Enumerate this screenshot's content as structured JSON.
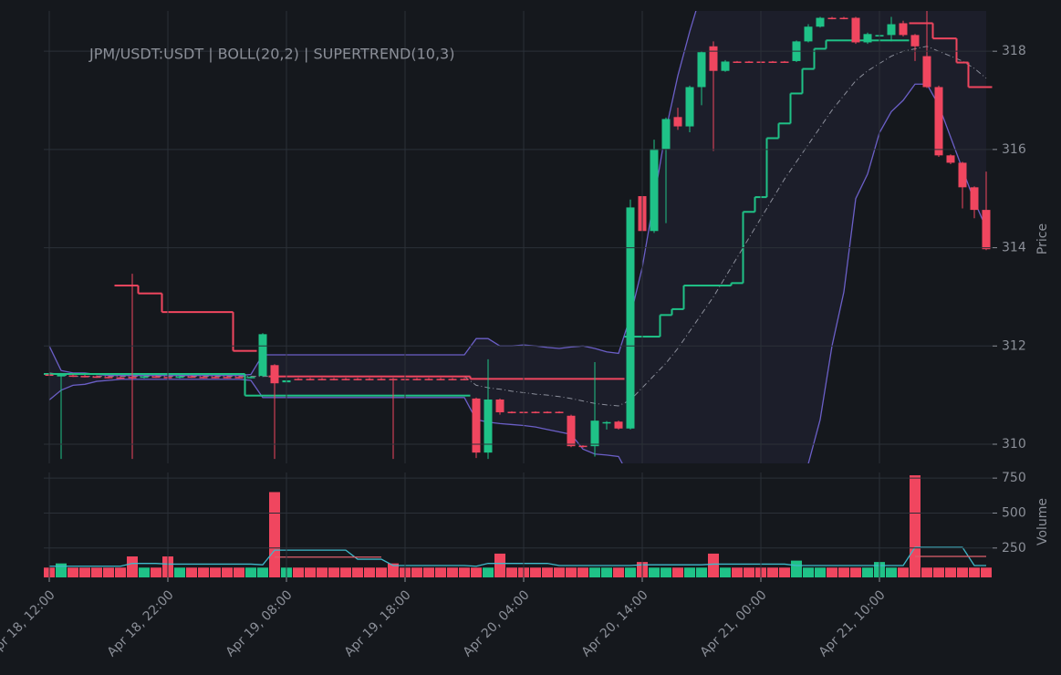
{
  "chart_data": {
    "type": "candlestick",
    "title": "JPM/USDT:USDT | BOLL(20,2) | SUPERTREND(10,3)",
    "ylabel": "Price",
    "x": [
      "Apr 18, 12:00",
      "Apr 18, 13:00",
      "Apr 18, 14:00",
      "Apr 18, 15:00",
      "Apr 18, 16:00",
      "Apr 18, 17:00",
      "Apr 18, 18:00",
      "Apr 18, 19:00",
      "Apr 18, 20:00",
      "Apr 18, 21:00",
      "Apr 18, 22:00",
      "Apr 18, 23:00",
      "Apr 19, 00:00",
      "Apr 19, 01:00",
      "Apr 19, 02:00",
      "Apr 19, 03:00",
      "Apr 19, 04:00",
      "Apr 19, 05:00",
      "Apr 19, 06:00",
      "Apr 19, 07:00",
      "Apr 19, 08:00",
      "Apr 19, 09:00",
      "Apr 19, 10:00",
      "Apr 19, 11:00",
      "Apr 19, 12:00",
      "Apr 19, 13:00",
      "Apr 19, 14:00",
      "Apr 19, 15:00",
      "Apr 19, 16:00",
      "Apr 19, 17:00",
      "Apr 19, 18:00",
      "Apr 19, 19:00",
      "Apr 19, 20:00",
      "Apr 19, 21:00",
      "Apr 19, 22:00",
      "Apr 19, 23:00",
      "Apr 20, 00:00",
      "Apr 20, 01:00",
      "Apr 20, 02:00",
      "Apr 20, 03:00",
      "Apr 20, 04:00",
      "Apr 20, 05:00",
      "Apr 20, 06:00",
      "Apr 20, 07:00",
      "Apr 20, 08:00",
      "Apr 20, 09:00",
      "Apr 20, 10:00",
      "Apr 20, 11:00",
      "Apr 20, 12:00",
      "Apr 20, 13:00",
      "Apr 20, 14:00",
      "Apr 20, 15:00",
      "Apr 20, 16:00",
      "Apr 20, 17:00",
      "Apr 20, 18:00",
      "Apr 20, 19:00",
      "Apr 20, 20:00",
      "Apr 20, 21:00",
      "Apr 20, 22:00",
      "Apr 20, 23:00",
      "Apr 21, 00:00",
      "Apr 21, 01:00",
      "Apr 21, 02:00",
      "Apr 21, 03:00",
      "Apr 21, 04:00",
      "Apr 21, 05:00",
      "Apr 21, 06:00",
      "Apr 21, 07:00",
      "Apr 21, 08:00",
      "Apr 21, 09:00",
      "Apr 21, 10:00",
      "Apr 21, 11:00",
      "Apr 21, 12:00",
      "Apr 21, 13:00",
      "Apr 21, 14:00",
      "Apr 21, 15:00",
      "Apr 21, 16:00",
      "Apr 21, 17:00",
      "Apr 21, 18:00",
      "Apr 21, 19:00"
    ],
    "xticks": [
      "Apr 18, 12:00",
      "Apr 18, 22:00",
      "Apr 19, 08:00",
      "Apr 19, 18:00",
      "Apr 20, 04:00",
      "Apr 20, 14:00",
      "Apr 21, 00:00",
      "Apr 21, 10:00"
    ],
    "open": [
      311.42,
      311.38,
      311.4,
      311.39,
      311.38,
      311.37,
      311.36,
      311.37,
      311.36,
      311.38,
      311.37,
      311.36,
      311.38,
      311.37,
      311.37,
      311.37,
      311.37,
      311.36,
      311.39,
      311.61,
      311.26,
      311.33,
      311.33,
      311.33,
      311.33,
      311.33,
      311.33,
      311.33,
      311.33,
      311.33,
      311.33,
      311.33,
      311.33,
      311.33,
      311.33,
      311.33,
      310.93,
      309.83,
      310.91,
      310.66,
      310.66,
      310.66,
      310.66,
      310.66,
      310.58,
      309.97,
      309.96,
      310.43,
      310.46,
      310.32,
      315.05,
      314.34,
      316.01,
      316.66,
      316.47,
      317.27,
      318.1,
      317.6,
      317.79,
      317.79,
      317.79,
      317.79,
      317.79,
      317.8,
      318.2,
      318.5,
      318.68,
      318.68,
      318.68,
      318.18,
      318.3,
      318.33,
      318.57,
      318.33,
      317.9,
      317.27,
      315.88,
      315.73,
      315.23,
      314.77
    ],
    "high": [
      311.45,
      311.45,
      311.42,
      311.41,
      311.4,
      311.39,
      311.38,
      313.47,
      311.4,
      311.4,
      311.39,
      311.4,
      311.4,
      311.39,
      311.39,
      311.39,
      311.39,
      311.39,
      312.26,
      311.63,
      311.32,
      311.35,
      311.35,
      311.35,
      311.35,
      311.35,
      311.35,
      311.35,
      311.35,
      311.35,
      311.35,
      311.35,
      311.35,
      311.35,
      311.35,
      311.35,
      310.95,
      311.73,
      310.93,
      310.67,
      310.67,
      310.67,
      310.67,
      310.67,
      310.6,
      309.98,
      311.67,
      310.47,
      310.48,
      314.98,
      315.2,
      316.2,
      316.65,
      316.85,
      317.3,
      318.0,
      318.2,
      317.82,
      317.8,
      317.8,
      317.8,
      317.8,
      317.8,
      318.22,
      318.55,
      318.7,
      318.7,
      318.7,
      318.7,
      318.38,
      318.5,
      318.7,
      318.62,
      318.35,
      318.82,
      317.3,
      315.9,
      315.75,
      315.25,
      315.55
    ],
    "low": [
      311.36,
      309.7,
      311.37,
      311.36,
      311.35,
      311.34,
      311.33,
      309.7,
      311.34,
      311.35,
      309.7,
      311.34,
      311.35,
      311.34,
      311.34,
      311.34,
      311.34,
      311.34,
      311.37,
      309.7,
      311.24,
      311.3,
      311.3,
      311.3,
      311.3,
      311.3,
      311.3,
      311.3,
      311.3,
      309.7,
      311.3,
      311.3,
      311.3,
      311.3,
      311.3,
      311.3,
      309.72,
      309.7,
      310.6,
      310.63,
      310.63,
      310.63,
      310.63,
      310.63,
      309.94,
      309.93,
      309.75,
      310.3,
      310.3,
      310.3,
      314.3,
      314.3,
      314.5,
      316.4,
      316.35,
      316.9,
      315.97,
      317.58,
      317.77,
      317.77,
      317.77,
      317.77,
      317.77,
      317.78,
      318.18,
      318.48,
      318.65,
      318.65,
      318.15,
      318.15,
      318.0,
      318.2,
      318.3,
      317.8,
      317.25,
      315.85,
      315.7,
      314.8,
      314.6,
      313.95
    ],
    "close": [
      311.4,
      311.42,
      311.39,
      311.38,
      311.37,
      311.36,
      311.35,
      311.34,
      311.38,
      311.37,
      311.35,
      311.38,
      311.37,
      311.36,
      311.36,
      311.36,
      311.36,
      311.37,
      312.24,
      311.24,
      311.3,
      311.32,
      311.32,
      311.32,
      311.32,
      311.32,
      311.32,
      311.32,
      311.32,
      311.31,
      311.32,
      311.32,
      311.32,
      311.32,
      311.32,
      311.32,
      309.83,
      310.91,
      310.65,
      310.65,
      310.65,
      310.65,
      310.65,
      310.65,
      309.96,
      309.96,
      310.48,
      310.45,
      310.32,
      314.82,
      314.34,
      316.01,
      316.62,
      316.47,
      317.27,
      317.98,
      317.6,
      317.79,
      317.78,
      317.78,
      317.78,
      317.78,
      317.78,
      318.2,
      318.5,
      318.68,
      318.67,
      318.67,
      318.18,
      318.35,
      318.33,
      318.55,
      318.33,
      318.1,
      317.27,
      315.88,
      315.73,
      315.23,
      314.77,
      313.97
    ],
    "up_color": "#1fc287",
    "down_color": "#f0465f",
    "ylim": [
      309.61,
      318.82
    ],
    "yticks": [
      310,
      312,
      314,
      316,
      318
    ],
    "grid": true,
    "bollinger": {
      "color": "#6b5fc7",
      "mid_color": "#8a8d99",
      "fill": "#1c1e2a",
      "upper": [
        312.0,
        311.5,
        311.45,
        311.45,
        311.42,
        311.4,
        311.4,
        311.4,
        311.4,
        311.4,
        311.4,
        311.4,
        311.4,
        311.4,
        311.4,
        311.4,
        311.4,
        311.42,
        311.82,
        311.82,
        311.82,
        311.82,
        311.82,
        311.82,
        311.82,
        311.82,
        311.82,
        311.82,
        311.82,
        311.82,
        311.82,
        311.82,
        311.82,
        311.82,
        311.82,
        311.82,
        312.15,
        312.15,
        312.0,
        312.0,
        312.02,
        312.0,
        311.97,
        311.95,
        311.98,
        312.0,
        311.95,
        311.88,
        311.85,
        312.6,
        313.6,
        315.0,
        316.4,
        317.5,
        318.4,
        319.2,
        319.8,
        320.2,
        320.5,
        320.7,
        320.9,
        321.0,
        321.1,
        321.1,
        321.1,
        321.0,
        320.9,
        320.5,
        320.2,
        320.0,
        319.8,
        319.6,
        319.4,
        319.2,
        319.2,
        319.3,
        319.5,
        320.0,
        320.3,
        320.5
      ],
      "mid": [
        311.45,
        311.42,
        311.38,
        311.38,
        311.38,
        311.38,
        311.38,
        311.38,
        311.38,
        311.38,
        311.38,
        311.38,
        311.38,
        311.38,
        311.38,
        311.38,
        311.38,
        311.38,
        311.38,
        311.38,
        311.38,
        311.38,
        311.38,
        311.38,
        311.38,
        311.38,
        311.38,
        311.38,
        311.38,
        311.38,
        311.38,
        311.38,
        311.38,
        311.38,
        311.38,
        311.38,
        311.2,
        311.15,
        311.12,
        311.08,
        311.05,
        311.02,
        311.0,
        310.97,
        310.93,
        310.88,
        310.83,
        310.8,
        310.78,
        310.9,
        311.15,
        311.4,
        311.65,
        311.95,
        312.3,
        312.65,
        313.0,
        313.4,
        313.8,
        314.2,
        314.6,
        315.0,
        315.4,
        315.75,
        316.1,
        316.45,
        316.8,
        317.1,
        317.4,
        317.6,
        317.75,
        317.9,
        318.0,
        318.05,
        318.1,
        318.0,
        317.9,
        317.8,
        317.65,
        317.45
      ],
      "lower": [
        310.9,
        311.1,
        311.2,
        311.22,
        311.28,
        311.3,
        311.32,
        311.32,
        311.32,
        311.32,
        311.32,
        311.32,
        311.32,
        311.32,
        311.32,
        311.32,
        311.32,
        311.3,
        310.95,
        310.95,
        310.95,
        310.95,
        310.95,
        310.95,
        310.95,
        310.95,
        310.95,
        310.95,
        310.95,
        310.95,
        310.95,
        310.95,
        310.95,
        310.95,
        310.95,
        310.95,
        310.5,
        310.45,
        310.42,
        310.4,
        310.38,
        310.35,
        310.3,
        310.25,
        310.2,
        309.9,
        309.8,
        309.78,
        309.75,
        309.3,
        308.9,
        308.5,
        308.1,
        307.7,
        307.3,
        306.9,
        306.6,
        306.3,
        306.1,
        306.0,
        306.0,
        306.3,
        306.8,
        307.6,
        309.6,
        310.5,
        312.0,
        313.1,
        315.0,
        315.5,
        316.34,
        316.77,
        317.0,
        317.33,
        317.33,
        316.9,
        316.25,
        315.6,
        314.95,
        314.4
      ]
    },
    "supertrend": [
      {
        "color": "#1fc287",
        "values": [
          311.43,
          311.43,
          311.43,
          311.43,
          311.43,
          311.43,
          311.43,
          311.43,
          311.43,
          311.43,
          311.43,
          311.43,
          311.43,
          311.43,
          311.43,
          311.43,
          311.43,
          310.99,
          310.99,
          310.99,
          310.99,
          310.99,
          310.99,
          310.99,
          310.99,
          310.99,
          310.99,
          310.99,
          310.99,
          310.99,
          310.99,
          310.99,
          310.99,
          310.99,
          310.99,
          310.99,
          null,
          null,
          null,
          null,
          null,
          null,
          null,
          null,
          null,
          null,
          null,
          null,
          null,
          312.19,
          312.19,
          312.19,
          312.63,
          312.75,
          313.23,
          313.23,
          313.23,
          313.23,
          313.28,
          314.73,
          315.03,
          316.23,
          316.53,
          317.14,
          317.64,
          318.05,
          318.22,
          318.22,
          318.22,
          318.22,
          318.22,
          318.22,
          318.22,
          null,
          null,
          null,
          null,
          null,
          null,
          null
        ]
      },
      {
        "color": "#f0465f",
        "values": [
          null,
          null,
          null,
          null,
          null,
          null,
          313.23,
          313.23,
          313.07,
          313.07,
          312.69,
          312.69,
          312.69,
          312.69,
          312.69,
          312.69,
          311.9,
          311.9,
          null,
          311.38,
          311.38,
          311.38,
          311.38,
          311.38,
          311.38,
          311.38,
          311.38,
          311.38,
          311.38,
          311.38,
          311.38,
          311.38,
          311.38,
          311.38,
          311.38,
          311.38,
          311.33,
          311.33,
          311.33,
          311.33,
          311.33,
          311.33,
          311.33,
          311.33,
          311.33,
          311.33,
          311.33,
          311.33,
          311.33,
          null,
          null,
          null,
          null,
          null,
          null,
          null,
          null,
          null,
          null,
          null,
          null,
          null,
          null,
          null,
          null,
          null,
          null,
          null,
          null,
          null,
          null,
          null,
          null,
          318.57,
          318.57,
          318.26,
          318.26,
          317.77,
          317.27,
          317.27
        ]
      }
    ],
    "volume": {
      "ylabel": "Volume",
      "ylim": [
        40,
        790
      ],
      "yticks": [
        250,
        500,
        750
      ],
      "values": [
        110,
        140,
        110,
        110,
        110,
        110,
        110,
        190,
        110,
        110,
        190,
        110,
        110,
        110,
        110,
        110,
        110,
        110,
        110,
        650,
        110,
        110,
        110,
        110,
        110,
        110,
        110,
        110,
        110,
        140,
        110,
        110,
        110,
        110,
        110,
        110,
        110,
        110,
        210,
        110,
        110,
        110,
        110,
        110,
        110,
        110,
        110,
        110,
        110,
        110,
        150,
        110,
        110,
        110,
        110,
        110,
        210,
        110,
        110,
        110,
        110,
        110,
        110,
        160,
        110,
        110,
        110,
        110,
        110,
        110,
        150,
        110,
        110,
        770,
        110,
        110,
        110,
        110,
        110,
        110
      ],
      "lines": [
        {
          "color": "#3fb8c9",
          "values": [
            120,
            120,
            120,
            120,
            120,
            120,
            120,
            140,
            140,
            140,
            135,
            135,
            135,
            135,
            135,
            135,
            135,
            135,
            130,
            235,
            235,
            235,
            235,
            235,
            235,
            235,
            170,
            170,
            170,
            125,
            125,
            125,
            125,
            125,
            125,
            125,
            120,
            140,
            140,
            140,
            140,
            140,
            140,
            125,
            125,
            125,
            125,
            125,
            125,
            125,
            130,
            130,
            130,
            130,
            130,
            130,
            135,
            135,
            135,
            135,
            135,
            135,
            135,
            125,
            125,
            125,
            125,
            125,
            125,
            125,
            125,
            125,
            125,
            255,
            255,
            255,
            255,
            255,
            125,
            125
          ]
        },
        {
          "color": "#e0606e",
          "values": [
            null,
            null,
            null,
            null,
            null,
            null,
            null,
            null,
            null,
            null,
            null,
            null,
            null,
            null,
            null,
            null,
            null,
            null,
            null,
            185,
            185,
            185,
            185,
            185,
            185,
            185,
            185,
            185,
            185,
            null,
            null,
            null,
            null,
            null,
            null,
            null,
            null,
            null,
            null,
            null,
            null,
            null,
            null,
            null,
            null,
            null,
            null,
            null,
            null,
            null,
            null,
            null,
            null,
            null,
            null,
            null,
            null,
            null,
            null,
            null,
            null,
            null,
            null,
            null,
            null,
            null,
            null,
            null,
            null,
            null,
            null,
            null,
            null,
            190,
            190,
            190,
            190,
            190,
            190,
            190
          ]
        }
      ]
    }
  }
}
